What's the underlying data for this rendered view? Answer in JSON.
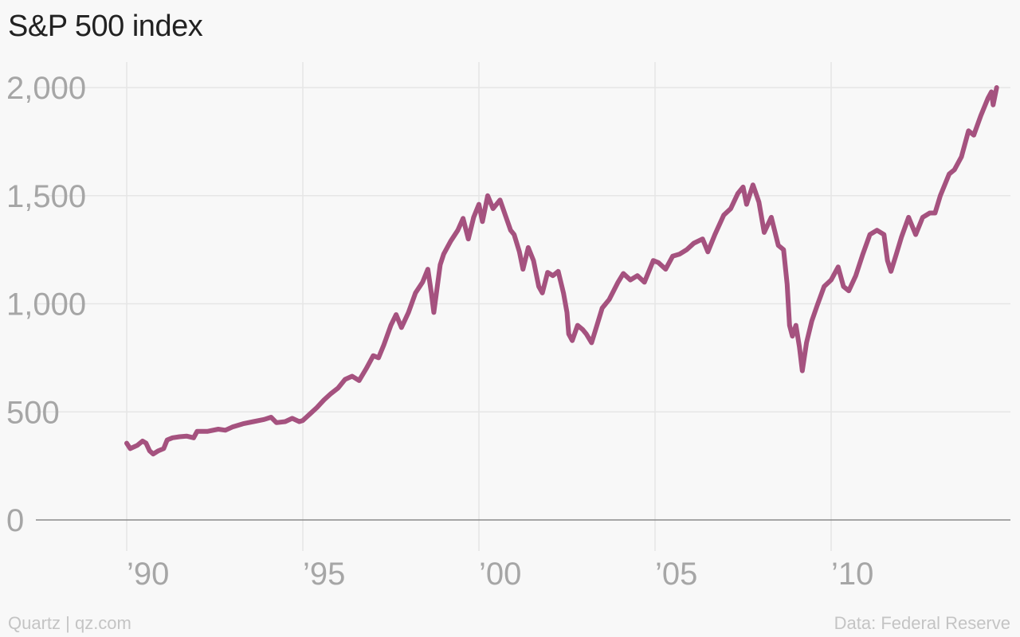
{
  "title": "S&P 500 index",
  "footer": {
    "left": "Quartz | qz.com",
    "right": "Data: Federal Reserve"
  },
  "colors": {
    "line": "#a5527f",
    "grid": "#e6e6e6",
    "axis": "#8a8a8a",
    "tick_text": "#a6a6a6",
    "background": "#f8f8f8"
  },
  "chart_data": {
    "type": "line",
    "title": "S&P 500 index",
    "xlabel": "",
    "ylabel": "",
    "xlim": [
      1990,
      2015
    ],
    "ylim": [
      0,
      2000
    ],
    "x_ticks": [
      {
        "value": 1990,
        "label": "’90"
      },
      {
        "value": 1995,
        "label": "’95"
      },
      {
        "value": 2000,
        "label": "’00"
      },
      {
        "value": 2005,
        "label": "’05"
      },
      {
        "value": 2010,
        "label": "’10"
      }
    ],
    "y_ticks": [
      {
        "value": 0,
        "label": "0"
      },
      {
        "value": 500,
        "label": "500"
      },
      {
        "value": 1000,
        "label": "1,000"
      },
      {
        "value": 1500,
        "label": "1,500"
      },
      {
        "value": 2000,
        "label": "2,000"
      }
    ],
    "grid": true,
    "series": [
      {
        "points": [
          [
            1990.0,
            355
          ],
          [
            1990.1,
            330
          ],
          [
            1990.3,
            345
          ],
          [
            1990.45,
            365
          ],
          [
            1990.55,
            355
          ],
          [
            1990.65,
            320
          ],
          [
            1990.75,
            305
          ],
          [
            1990.9,
            320
          ],
          [
            1991.05,
            330
          ],
          [
            1991.15,
            370
          ],
          [
            1991.3,
            380
          ],
          [
            1991.5,
            385
          ],
          [
            1991.7,
            388
          ],
          [
            1991.9,
            380
          ],
          [
            1992.0,
            410
          ],
          [
            1992.3,
            410
          ],
          [
            1992.6,
            420
          ],
          [
            1992.8,
            415
          ],
          [
            1993.0,
            430
          ],
          [
            1993.3,
            445
          ],
          [
            1993.6,
            455
          ],
          [
            1993.9,
            465
          ],
          [
            1994.1,
            475
          ],
          [
            1994.25,
            450
          ],
          [
            1994.5,
            455
          ],
          [
            1994.7,
            470
          ],
          [
            1994.9,
            455
          ],
          [
            1995.0,
            460
          ],
          [
            1995.2,
            490
          ],
          [
            1995.4,
            520
          ],
          [
            1995.6,
            555
          ],
          [
            1995.8,
            585
          ],
          [
            1996.0,
            610
          ],
          [
            1996.2,
            650
          ],
          [
            1996.4,
            665
          ],
          [
            1996.6,
            645
          ],
          [
            1996.8,
            700
          ],
          [
            1997.0,
            760
          ],
          [
            1997.15,
            750
          ],
          [
            1997.3,
            810
          ],
          [
            1997.5,
            900
          ],
          [
            1997.65,
            950
          ],
          [
            1997.8,
            890
          ],
          [
            1998.0,
            960
          ],
          [
            1998.2,
            1050
          ],
          [
            1998.4,
            1100
          ],
          [
            1998.55,
            1160
          ],
          [
            1998.65,
            1050
          ],
          [
            1998.72,
            960
          ],
          [
            1998.9,
            1180
          ],
          [
            1999.0,
            1230
          ],
          [
            1999.2,
            1290
          ],
          [
            1999.4,
            1340
          ],
          [
            1999.55,
            1395
          ],
          [
            1999.7,
            1300
          ],
          [
            1999.85,
            1400
          ],
          [
            2000.0,
            1460
          ],
          [
            2000.1,
            1380
          ],
          [
            2000.25,
            1500
          ],
          [
            2000.4,
            1440
          ],
          [
            2000.6,
            1480
          ],
          [
            2000.75,
            1410
          ],
          [
            2000.9,
            1340
          ],
          [
            2001.0,
            1320
          ],
          [
            2001.15,
            1240
          ],
          [
            2001.25,
            1160
          ],
          [
            2001.4,
            1260
          ],
          [
            2001.55,
            1200
          ],
          [
            2001.7,
            1080
          ],
          [
            2001.8,
            1050
          ],
          [
            2001.95,
            1145
          ],
          [
            2002.1,
            1130
          ],
          [
            2002.25,
            1150
          ],
          [
            2002.4,
            1050
          ],
          [
            2002.5,
            960
          ],
          [
            2002.55,
            860
          ],
          [
            2002.65,
            830
          ],
          [
            2002.8,
            900
          ],
          [
            2002.95,
            880
          ],
          [
            2003.05,
            860
          ],
          [
            2003.2,
            820
          ],
          [
            2003.35,
            900
          ],
          [
            2003.5,
            980
          ],
          [
            2003.7,
            1020
          ],
          [
            2003.95,
            1100
          ],
          [
            2004.1,
            1140
          ],
          [
            2004.3,
            1110
          ],
          [
            2004.5,
            1130
          ],
          [
            2004.7,
            1100
          ],
          [
            2004.95,
            1200
          ],
          [
            2005.1,
            1190
          ],
          [
            2005.3,
            1160
          ],
          [
            2005.5,
            1220
          ],
          [
            2005.7,
            1230
          ],
          [
            2005.9,
            1250
          ],
          [
            2006.1,
            1280
          ],
          [
            2006.35,
            1300
          ],
          [
            2006.5,
            1240
          ],
          [
            2006.7,
            1320
          ],
          [
            2006.95,
            1410
          ],
          [
            2007.15,
            1440
          ],
          [
            2007.35,
            1510
          ],
          [
            2007.5,
            1540
          ],
          [
            2007.6,
            1460
          ],
          [
            2007.78,
            1550
          ],
          [
            2007.95,
            1470
          ],
          [
            2008.1,
            1330
          ],
          [
            2008.3,
            1400
          ],
          [
            2008.5,
            1270
          ],
          [
            2008.65,
            1250
          ],
          [
            2008.75,
            1090
          ],
          [
            2008.82,
            900
          ],
          [
            2008.9,
            850
          ],
          [
            2009.0,
            900
          ],
          [
            2009.1,
            800
          ],
          [
            2009.18,
            690
          ],
          [
            2009.3,
            820
          ],
          [
            2009.45,
            920
          ],
          [
            2009.6,
            990
          ],
          [
            2009.8,
            1080
          ],
          [
            2010.0,
            1110
          ],
          [
            2010.2,
            1170
          ],
          [
            2010.35,
            1080
          ],
          [
            2010.5,
            1060
          ],
          [
            2010.7,
            1130
          ],
          [
            2010.9,
            1230
          ],
          [
            2011.1,
            1320
          ],
          [
            2011.3,
            1340
          ],
          [
            2011.5,
            1320
          ],
          [
            2011.6,
            1200
          ],
          [
            2011.7,
            1150
          ],
          [
            2011.85,
            1230
          ],
          [
            2012.0,
            1310
          ],
          [
            2012.2,
            1400
          ],
          [
            2012.4,
            1320
          ],
          [
            2012.6,
            1400
          ],
          [
            2012.8,
            1420
          ],
          [
            2012.95,
            1420
          ],
          [
            2013.1,
            1500
          ],
          [
            2013.35,
            1600
          ],
          [
            2013.5,
            1620
          ],
          [
            2013.7,
            1680
          ],
          [
            2013.9,
            1800
          ],
          [
            2014.05,
            1780
          ],
          [
            2014.25,
            1870
          ],
          [
            2014.45,
            1950
          ],
          [
            2014.55,
            1980
          ],
          [
            2014.6,
            1920
          ],
          [
            2014.7,
            2000
          ]
        ]
      }
    ]
  }
}
